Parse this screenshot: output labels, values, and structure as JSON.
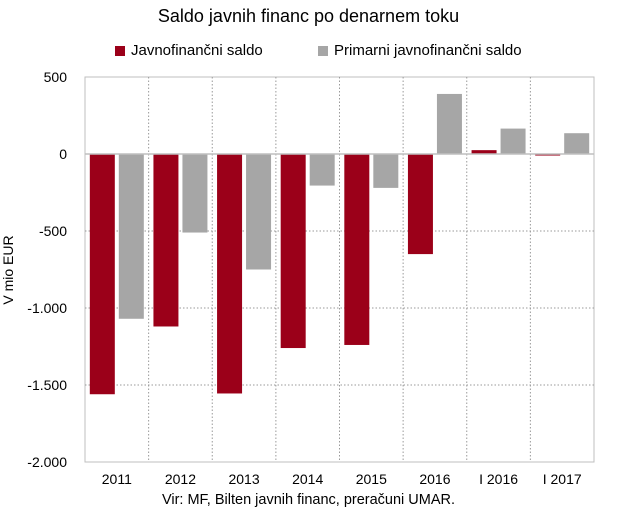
{
  "chart_data": {
    "type": "bar",
    "title": "Saldo javnih financ po denarnem toku",
    "ylabel": "V mio EUR",
    "xlabel": "",
    "categories": [
      "2011",
      "2012",
      "2013",
      "2014",
      "2015",
      "2016",
      "I 2016",
      "I 2017"
    ],
    "series": [
      {
        "name": "Javnofinančni saldo",
        "color": "#9b0019",
        "values": [
          -1560,
          -1120,
          -1555,
          -1260,
          -1240,
          -650,
          25,
          -10
        ]
      },
      {
        "name": "Primarni javnofinančni saldo",
        "color": "#a6a6a6",
        "values": [
          -1070,
          -510,
          -750,
          -205,
          -220,
          390,
          165,
          135
        ]
      }
    ],
    "ylim": [
      -2000,
      500
    ],
    "yticks": [
      500,
      0,
      -500,
      -1000,
      -1500,
      -2000
    ],
    "ytick_labels": [
      "500",
      "0",
      "-500",
      "-1.000",
      "-1.500",
      "-2.000"
    ],
    "grid": true,
    "legend_position": "top"
  },
  "source_text": "Vir: MF, Bilten javnih financ, preračuni UMAR."
}
